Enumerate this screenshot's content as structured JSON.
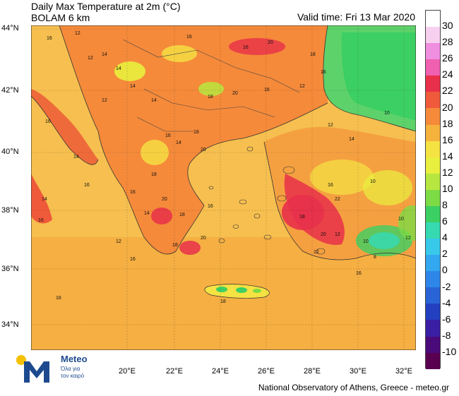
{
  "header": {
    "title_line1": "Daily Max Temperature at 2m (°C)",
    "title_line2": "BOLAM 6 km",
    "valid_time": "Valid time: Fri 13 Mar 2020"
  },
  "axes": {
    "lat_labels": [
      "44°N",
      "42°N",
      "40°N",
      "38°N",
      "36°N",
      "34°N"
    ],
    "lon_labels": [
      "20°E",
      "22°E",
      "24°E",
      "26°E",
      "28°E",
      "30°E",
      "32°E"
    ]
  },
  "legend": {
    "labels": [
      "30",
      "28",
      "26",
      "24",
      "22",
      "20",
      "18",
      "16",
      "14",
      "12",
      "10",
      "8",
      "6",
      "4",
      "2",
      "0",
      "-2",
      "-4",
      "-6",
      "-8",
      "-10"
    ],
    "colors": [
      "#ffffff",
      "#f7d0f0",
      "#f08ee0",
      "#f060b0",
      "#e8304a",
      "#ef5a3a",
      "#f58a3a",
      "#f5b23d",
      "#f5e243",
      "#e9ef3e",
      "#b8e640",
      "#7ddb45",
      "#3ccf63",
      "#36d9b0",
      "#38c9ea",
      "#33a8f0",
      "#2e86e8",
      "#2964d6",
      "#2340c0",
      "#3a1fa5",
      "#4b0a7a",
      "#5a0050"
    ]
  },
  "map_labels": {
    "values": [
      "12",
      "16",
      "14",
      "12",
      "14",
      "16",
      "16",
      "20",
      "18",
      "16",
      "14",
      "12",
      "14",
      "18",
      "20",
      "16",
      "12",
      "18",
      "16",
      "20",
      "14",
      "12",
      "10",
      "14",
      "18",
      "16",
      "20",
      "18",
      "14",
      "12",
      "16",
      "22",
      "18",
      "20",
      "12",
      "10",
      "8",
      "12",
      "10",
      "16",
      "14",
      "16",
      "16",
      "16",
      "16",
      "14",
      "18",
      "12",
      "16",
      "20",
      "18",
      "16",
      "10"
    ]
  },
  "footer": {
    "credit": "National Observatory of Athens, Greece - meteo.gr"
  },
  "logo": {
    "name": "Meteo",
    "tagline1": "Όλα για",
    "tagline2": "τον καιρό"
  }
}
